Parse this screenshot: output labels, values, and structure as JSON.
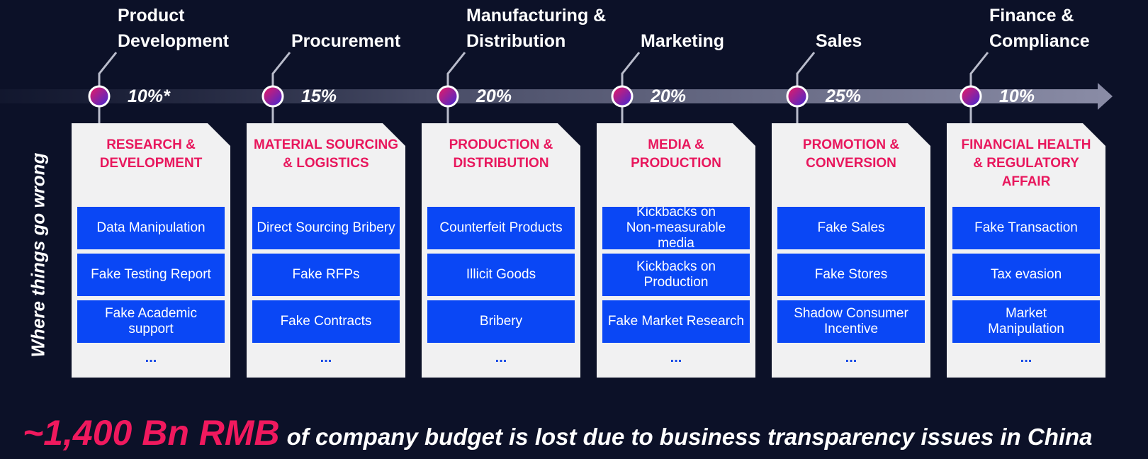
{
  "side_label": "Where things go wrong",
  "stages": [
    {
      "title": "Product\nDevelopment",
      "percent": "10%*",
      "card_title": "RESEARCH &\nDEVELOPMENT",
      "issues": [
        "Data Manipulation",
        "Fake Testing Report",
        "Fake Academic\nsupport"
      ],
      "more": "..."
    },
    {
      "title": "Procurement",
      "percent": "15%",
      "card_title": "MATERIAL SOURCING\n& LOGISTICS",
      "issues": [
        "Direct Sourcing Bribery",
        "Fake RFPs",
        "Fake Contracts"
      ],
      "more": "..."
    },
    {
      "title": "Manufacturing &\nDistribution",
      "percent": "20%",
      "card_title": "PRODUCTION &\nDISTRIBUTION",
      "issues": [
        "Counterfeit Products",
        "Illicit Goods",
        "Bribery"
      ],
      "more": "..."
    },
    {
      "title": "Marketing",
      "percent": "20%",
      "card_title": "MEDIA &\nPRODUCTION",
      "issues": [
        "Kickbacks on\nNon-measurable\nmedia",
        "Kickbacks on\nProduction",
        "Fake Market Research"
      ],
      "more": "..."
    },
    {
      "title": "Sales",
      "percent": "25%",
      "card_title": "PROMOTION &\nCONVERSION",
      "issues": [
        "Fake Sales",
        "Fake Stores",
        "Shadow Consumer\nIncentive"
      ],
      "more": "..."
    },
    {
      "title": "Finance &\nCompliance",
      "percent": "10%",
      "card_title": "FINANCIAL HEALTH\n& REGULATORY\nAFFAIR",
      "issues": [
        "Fake Transaction",
        "Tax evasion",
        "Market\nManipulation"
      ],
      "more": "..."
    }
  ],
  "footer": {
    "highlight": "~1,400 Bn RMB",
    "text": "of company budget is lost due to business transparency issues in China"
  },
  "colors": {
    "background": "#0c1128",
    "accent_pink": "#e8175d",
    "issue_blue": "#0a47f5",
    "card": "#f1f1f2"
  }
}
